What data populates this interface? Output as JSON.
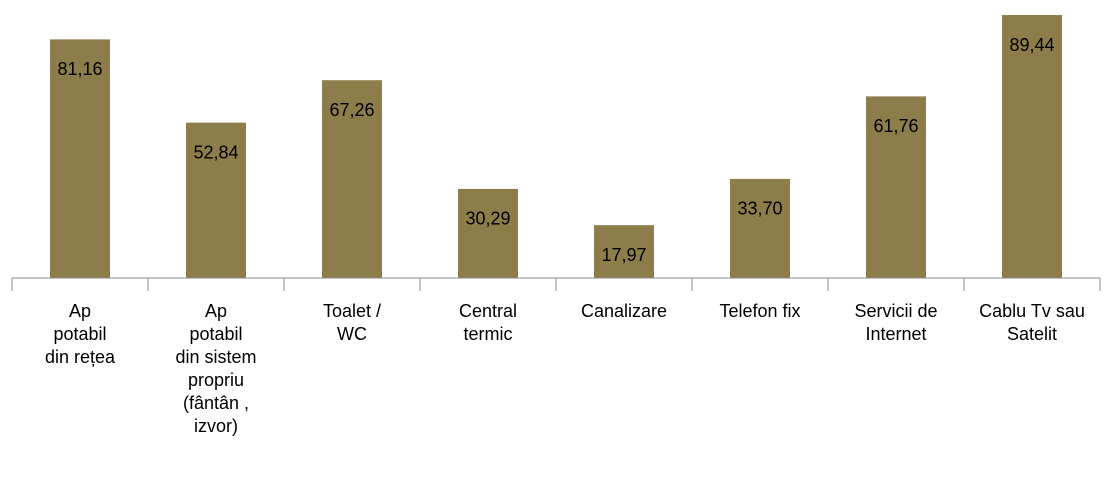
{
  "chart_data": {
    "type": "bar",
    "categories": [
      "Ap\npotabil\ndin rețea",
      "Ap\npotabil\ndin sistem\npropriu\n(fântân  ,\nizvor)",
      "Toalet   /\nWC",
      "Central\ntermic",
      "Canalizare",
      "Telefon fix",
      "Servicii de\nInternet",
      "Cablu Tv sau\nSatelit"
    ],
    "values": [
      81.16,
      52.84,
      67.26,
      30.29,
      17.97,
      33.7,
      61.76,
      89.44
    ],
    "value_labels": [
      "81,16",
      "52,84",
      "67,26",
      "30,29",
      "17,97",
      "33,70",
      "61,76",
      "89,44"
    ],
    "color": "#8c7d4a"
  }
}
